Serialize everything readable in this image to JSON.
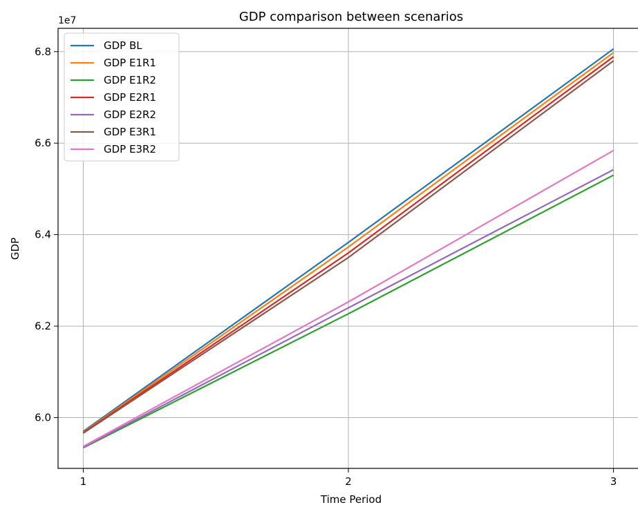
{
  "chart_data": {
    "type": "line",
    "title": "GDP comparison between scenarios",
    "xlabel": "Time Period",
    "ylabel": "GDP",
    "offset_label": "1e7",
    "x": [
      1,
      2,
      3
    ],
    "xticks": [
      1,
      2,
      3
    ],
    "xtick_labels": [
      "1",
      "2",
      "3"
    ],
    "yticks": [
      6.0,
      6.2,
      6.4,
      6.6,
      6.8
    ],
    "ytick_labels": [
      "6.0",
      "6.2",
      "6.4",
      "6.6",
      "6.8"
    ],
    "xlim": [
      0.905,
      3.095
    ],
    "ylim": [
      5.889,
      6.851
    ],
    "grid": true,
    "legend_position": "upper-left",
    "series": [
      {
        "name": "GDP BL",
        "color": "#1f77b4",
        "values": [
          5.97,
          6.383,
          6.806
        ]
      },
      {
        "name": "GDP E1R1",
        "color": "#ff7f0e",
        "values": [
          5.968,
          6.373,
          6.798
        ]
      },
      {
        "name": "GDP E1R2",
        "color": "#2ca02c",
        "values": [
          5.934,
          6.227,
          6.53
        ]
      },
      {
        "name": "GDP E2R1",
        "color": "#d62728",
        "values": [
          5.967,
          6.36,
          6.789
        ]
      },
      {
        "name": "GDP E2R2",
        "color": "#9467bd",
        "values": [
          5.935,
          6.24,
          6.542
        ]
      },
      {
        "name": "GDP E3R1",
        "color": "#8c564b",
        "values": [
          5.966,
          6.35,
          6.78
        ]
      },
      {
        "name": "GDP E3R2",
        "color": "#e377c2",
        "values": [
          5.937,
          6.253,
          6.584
        ]
      }
    ]
  }
}
